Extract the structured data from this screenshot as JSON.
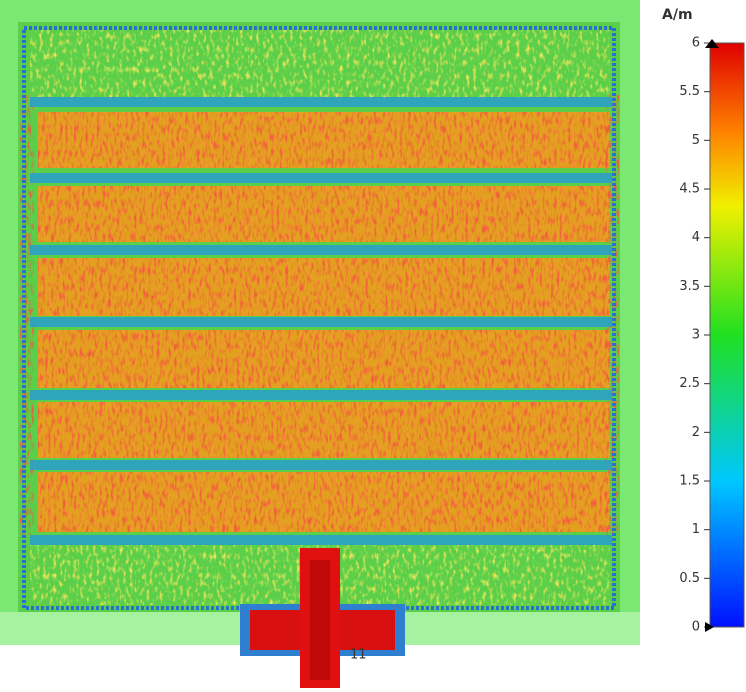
{
  "colorbar": {
    "unit": "A/m",
    "min": 0,
    "max": 6,
    "ticks": [
      0,
      0.5,
      1,
      1.5,
      2,
      2.5,
      3,
      3.5,
      4,
      4.5,
      5,
      5.5,
      6
    ]
  },
  "port_label": "11"
}
